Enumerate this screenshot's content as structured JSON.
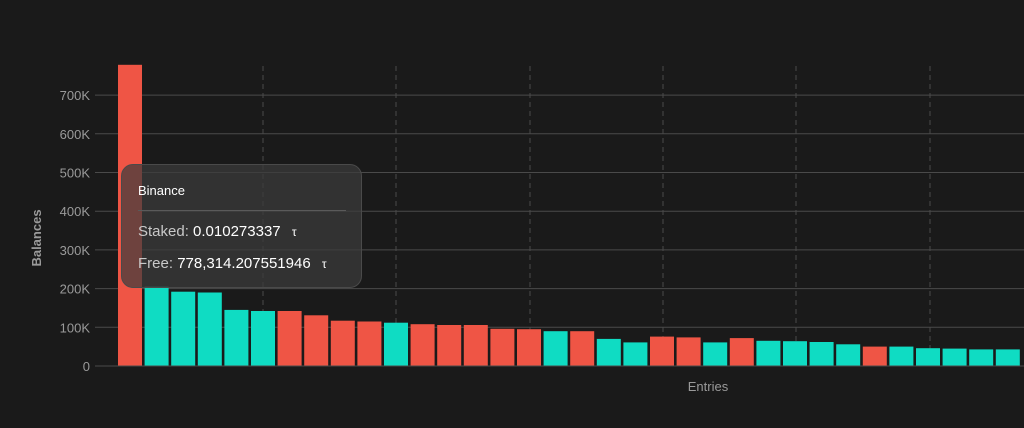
{
  "chart_data": {
    "type": "bar",
    "ylabel": "Balances",
    "xlabel": "Entries",
    "ylim": [
      0,
      780000
    ],
    "y_ticks": [
      {
        "value": 0,
        "label": "0"
      },
      {
        "value": 100000,
        "label": "100K"
      },
      {
        "value": 200000,
        "label": "200K"
      },
      {
        "value": 300000,
        "label": "300K"
      },
      {
        "value": 400000,
        "label": "400K"
      },
      {
        "value": 500000,
        "label": "500K"
      },
      {
        "value": 600000,
        "label": "600K"
      },
      {
        "value": 700000,
        "label": "700K"
      }
    ],
    "grid": {
      "horizontal": true,
      "vertical_dashed": true
    },
    "colors": {
      "red": "#ef5545",
      "teal": "#0fdcc3",
      "background": "#1a1a1a",
      "grid": "#4a4a4a",
      "axis_text": "#9a9a9a"
    },
    "bars": [
      {
        "value": 778314.2,
        "color": "red"
      },
      {
        "value": 205000,
        "color": "teal"
      },
      {
        "value": 192000,
        "color": "teal"
      },
      {
        "value": 190000,
        "color": "teal"
      },
      {
        "value": 145000,
        "color": "teal"
      },
      {
        "value": 142000,
        "color": "teal"
      },
      {
        "value": 142000,
        "color": "red"
      },
      {
        "value": 131000,
        "color": "red"
      },
      {
        "value": 117000,
        "color": "red"
      },
      {
        "value": 115000,
        "color": "red"
      },
      {
        "value": 112000,
        "color": "teal"
      },
      {
        "value": 108000,
        "color": "red"
      },
      {
        "value": 106000,
        "color": "red"
      },
      {
        "value": 106000,
        "color": "red"
      },
      {
        "value": 96000,
        "color": "red"
      },
      {
        "value": 95000,
        "color": "red"
      },
      {
        "value": 90000,
        "color": "teal"
      },
      {
        "value": 90000,
        "color": "red"
      },
      {
        "value": 70000,
        "color": "teal"
      },
      {
        "value": 61000,
        "color": "teal"
      },
      {
        "value": 76000,
        "color": "red"
      },
      {
        "value": 74000,
        "color": "red"
      },
      {
        "value": 61000,
        "color": "teal"
      },
      {
        "value": 72000,
        "color": "red"
      },
      {
        "value": 65000,
        "color": "teal"
      },
      {
        "value": 64000,
        "color": "teal"
      },
      {
        "value": 62000,
        "color": "teal"
      },
      {
        "value": 56000,
        "color": "teal"
      },
      {
        "value": 50000,
        "color": "red"
      },
      {
        "value": 50000,
        "color": "teal"
      },
      {
        "value": 46000,
        "color": "teal"
      },
      {
        "value": 45000,
        "color": "teal"
      },
      {
        "value": 43000,
        "color": "teal"
      },
      {
        "value": 43000,
        "color": "teal"
      }
    ]
  },
  "tooltip": {
    "title": "Binance",
    "staked_label": "Staked:",
    "staked_value": "0.010273337",
    "free_label": "Free:",
    "free_value": "778,314.207551946",
    "currency_symbol": "τ"
  }
}
